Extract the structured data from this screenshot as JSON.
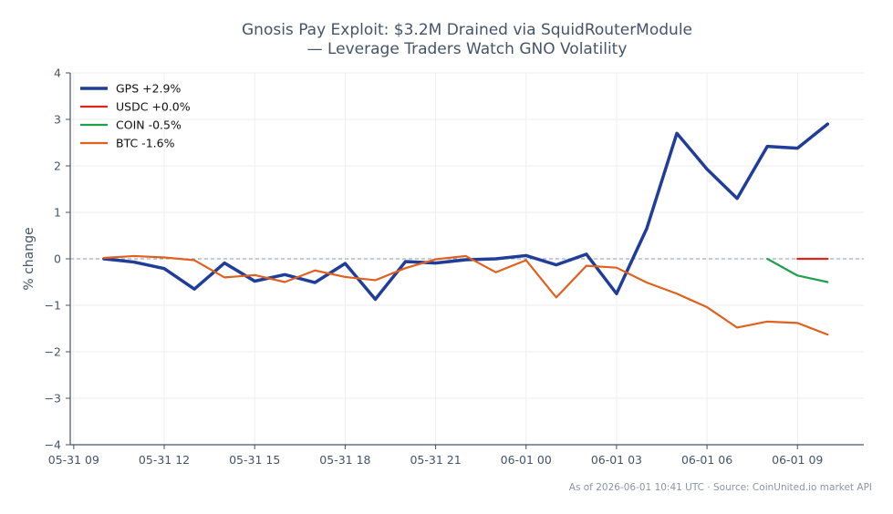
{
  "chart_data": {
    "type": "line",
    "title_lines": [
      "Gnosis Pay Exploit: $3.2M Drained via SquidRouterModule",
      "— Leverage Traders Watch GNO Volatility"
    ],
    "xlabel": "",
    "ylabel": "% change",
    "ylim": [
      -4,
      4
    ],
    "yticks": [
      4,
      3,
      2,
      1,
      0,
      -1,
      -2,
      -3,
      -4
    ],
    "ytick_labels": [
      "4",
      "3",
      "2",
      "1",
      "0",
      "−1",
      "−2",
      "−3",
      "−4"
    ],
    "x_unit": "hour",
    "x_start": "05-31 09:00",
    "xlim": [
      "05-31 08:53",
      "06-01 11:12"
    ],
    "xticks": [
      "05-31 09:00",
      "05-31 12:00",
      "05-31 15:00",
      "05-31 18:00",
      "05-31 21:00",
      "06-01 00:00",
      "06-01 03:00",
      "06-01 06:00",
      "06-01 09:00"
    ],
    "xtick_labels": [
      "05-31 09",
      "05-31 12",
      "05-31 15",
      "05-31 18",
      "05-31 21",
      "06-01 00",
      "06-01 03",
      "06-01 06",
      "06-01 09"
    ],
    "grid": true,
    "baseline": 0,
    "legend_position": "top-left",
    "series": [
      {
        "name": "GPS +2.9%",
        "color": "#1f3d99",
        "x": [
          "05-31 10:00",
          "05-31 11:00",
          "05-31 12:00",
          "05-31 13:00",
          "05-31 14:00",
          "05-31 15:00",
          "05-31 16:00",
          "05-31 17:00",
          "05-31 18:00",
          "05-31 19:00",
          "05-31 20:00",
          "05-31 21:00",
          "05-31 22:00",
          "05-31 23:00",
          "06-01 00:00",
          "06-01 01:00",
          "06-01 02:00",
          "06-01 03:00",
          "06-01 04:00",
          "06-01 05:00",
          "06-01 06:00",
          "06-01 07:00",
          "06-01 08:00",
          "06-01 09:00",
          "06-01 10:00"
        ],
        "values": [
          0.0,
          -0.07,
          -0.21,
          -0.65,
          -0.09,
          -0.48,
          -0.34,
          -0.51,
          -0.1,
          -0.87,
          -0.06,
          -0.09,
          -0.02,
          0.0,
          0.07,
          -0.13,
          0.1,
          -0.75,
          0.65,
          2.7,
          1.93,
          1.3,
          2.42,
          2.38,
          2.9
        ]
      },
      {
        "name": "USDC +0.0%",
        "color": "#e0241b",
        "x": [
          "06-01 09:00",
          "06-01 10:00"
        ],
        "values": [
          0.0,
          0.0
        ]
      },
      {
        "name": "COIN -0.5%",
        "color": "#20a04b",
        "x": [
          "06-01 08:00",
          "06-01 09:00",
          "06-01 10:00"
        ],
        "values": [
          0.0,
          -0.36,
          -0.5
        ]
      },
      {
        "name": "BTC -1.6%",
        "color": "#e0601f",
        "x": [
          "05-31 10:00",
          "05-31 11:00",
          "05-31 12:00",
          "05-31 13:00",
          "05-31 14:00",
          "05-31 15:00",
          "05-31 16:00",
          "05-31 17:00",
          "05-31 18:00",
          "05-31 19:00",
          "05-31 20:00",
          "05-31 21:00",
          "05-31 22:00",
          "05-31 23:00",
          "06-01 00:00",
          "06-01 01:00",
          "06-01 02:00",
          "06-01 03:00",
          "06-01 04:00",
          "06-01 05:00",
          "06-01 06:00",
          "06-01 07:00",
          "06-01 08:00",
          "06-01 09:00",
          "06-01 10:00"
        ],
        "values": [
          0.02,
          0.06,
          0.03,
          -0.03,
          -0.4,
          -0.35,
          -0.5,
          -0.25,
          -0.39,
          -0.46,
          -0.2,
          -0.01,
          0.06,
          -0.29,
          -0.03,
          -0.83,
          -0.15,
          -0.19,
          -0.51,
          -0.75,
          -1.04,
          -1.48,
          -1.35,
          -1.38,
          -1.63
        ]
      }
    ],
    "footnote": "As of 2026-06-01 10:41 UTC · Source: CoinUnited.io market API"
  },
  "colors": {
    "axis": "#44546a",
    "grid": "#eeeeee",
    "baseline": "#8a9bb5"
  }
}
